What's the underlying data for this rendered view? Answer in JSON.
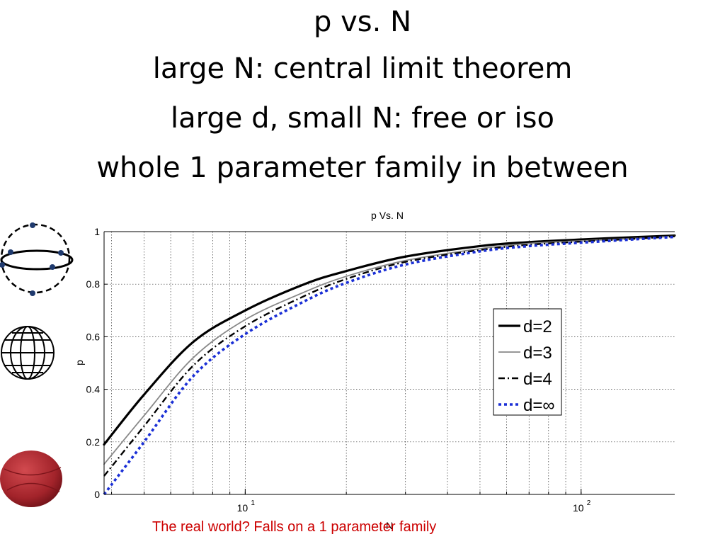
{
  "slide": {
    "title_lines": [
      "p  vs. N",
      "large N: central limit theorem",
      "large d, small N: free or iso",
      "whole 1 parameter family in between"
    ],
    "caption": "The real world? Falls on a 1 parameter family"
  },
  "chart_data": {
    "type": "line",
    "title": "p Vs. N",
    "xlabel": "N",
    "ylabel": "p",
    "x_scale": "log",
    "xlim": [
      3.8,
      190
    ],
    "ylim": [
      0,
      1
    ],
    "y_ticks": [
      0,
      0.2,
      0.4,
      0.6,
      0.8,
      1
    ],
    "y_tick_labels": [
      "0",
      "0.2",
      "0.4",
      "0.6",
      "0.8",
      "1"
    ],
    "x_major_ticks": [
      10,
      100
    ],
    "x_tick_labels": [
      "10",
      "100"
    ],
    "x_tick_base": "10",
    "x_tick_exponents": [
      "1",
      "2"
    ],
    "grid": true,
    "legend_position": "right",
    "series": [
      {
        "name": "d=2",
        "color": "#000000",
        "style": "solid-thick",
        "x": [
          3.8,
          5,
          7,
          10,
          15,
          20,
          30,
          50,
          70,
          100,
          150,
          190
        ],
        "y": [
          0.19,
          0.38,
          0.58,
          0.7,
          0.8,
          0.85,
          0.905,
          0.945,
          0.96,
          0.97,
          0.98,
          0.985
        ]
      },
      {
        "name": "d=3",
        "color": "#888888",
        "style": "solid-thin",
        "x": [
          3.8,
          5,
          7,
          10,
          15,
          20,
          30,
          50,
          70,
          100,
          150,
          190
        ],
        "y": [
          0.115,
          0.3,
          0.52,
          0.665,
          0.77,
          0.83,
          0.89,
          0.935,
          0.955,
          0.965,
          0.975,
          0.983
        ]
      },
      {
        "name": "d=4",
        "color": "#000000",
        "style": "dash-dot",
        "x": [
          3.8,
          5,
          7,
          10,
          15,
          20,
          30,
          50,
          70,
          100,
          150,
          190
        ],
        "y": [
          0.07,
          0.26,
          0.49,
          0.64,
          0.755,
          0.82,
          0.885,
          0.93,
          0.95,
          0.962,
          0.974,
          0.982
        ]
      },
      {
        "name": "d=∞",
        "color": "#1a2fd6",
        "style": "dotted-thick",
        "x": [
          3.8,
          5,
          7,
          10,
          15,
          20,
          30,
          50,
          70,
          100,
          150,
          190
        ],
        "y": [
          0.0,
          0.2,
          0.45,
          0.61,
          0.735,
          0.805,
          0.875,
          0.925,
          0.945,
          0.958,
          0.972,
          0.98
        ]
      }
    ]
  },
  "icons": {
    "top": "circle-points-icon",
    "middle": "wireframe-globe-icon",
    "bottom": "red-ball-icon"
  }
}
